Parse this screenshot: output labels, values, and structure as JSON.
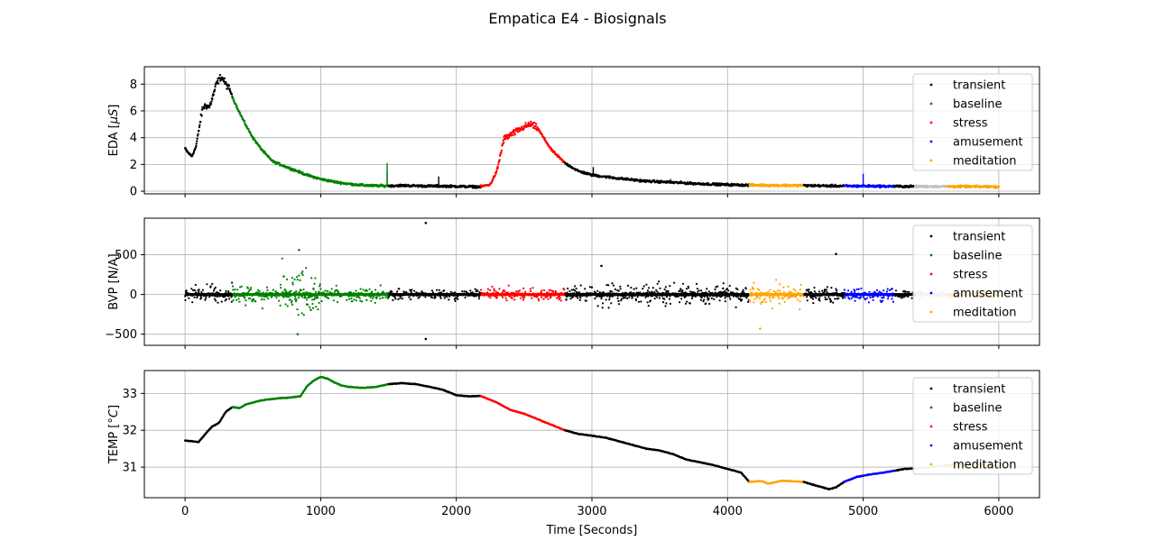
{
  "chart_data": {
    "type": "scatter",
    "title": "Empatica E4 - Biosignals",
    "xlabel": "Time [Seconds]",
    "xlim": [
      -300,
      6300
    ],
    "xticks": [
      0,
      1000,
      2000,
      3000,
      4000,
      5000,
      6000
    ],
    "grid": true,
    "legend_position": "upper right",
    "phase_colors": {
      "transient": "#000000",
      "baseline": "#008000",
      "stress": "#ff0000",
      "amusement": "#0000ff",
      "meditation": "#ffa500",
      "neutral": "#c0c0c0"
    },
    "legend": [
      "transient",
      "baseline",
      "stress",
      "amusement",
      "meditation"
    ],
    "phases": [
      {
        "label": "transient",
        "start": 0,
        "end": 350
      },
      {
        "label": "baseline",
        "start": 350,
        "end": 1500
      },
      {
        "label": "transient",
        "start": 1500,
        "end": 2180
      },
      {
        "label": "stress",
        "start": 2180,
        "end": 2800
      },
      {
        "label": "transient",
        "start": 2800,
        "end": 4160
      },
      {
        "label": "meditation",
        "start": 4160,
        "end": 4560
      },
      {
        "label": "transient",
        "start": 4560,
        "end": 4860
      },
      {
        "label": "amusement",
        "start": 4860,
        "end": 5230
      },
      {
        "label": "transient",
        "start": 5230,
        "end": 5380
      },
      {
        "label": "neutral",
        "start": 5380,
        "end": 5620
      },
      {
        "label": "meditation",
        "start": 5620,
        "end": 6000
      }
    ],
    "panels": [
      {
        "name": "EDA",
        "ylabel_main": "EDA [",
        "ylabel_unit": "μS",
        "ylabel_close": "]",
        "ylim": [
          -0.2,
          9.3
        ],
        "yticks": [
          0,
          2,
          4,
          6,
          8
        ],
        "ytick_labels": [
          "0",
          "2",
          "4",
          "6",
          "8"
        ],
        "x": [
          0,
          20,
          50,
          80,
          100,
          130,
          150,
          180,
          200,
          230,
          260,
          280,
          300,
          330,
          350,
          400,
          450,
          500,
          550,
          600,
          650,
          700,
          800,
          900,
          1000,
          1100,
          1200,
          1300,
          1400,
          1500,
          1600,
          1700,
          1800,
          1900,
          2000,
          2100,
          2180,
          2250,
          2300,
          2350,
          2400,
          2450,
          2500,
          2550,
          2600,
          2650,
          2700,
          2800,
          2900,
          3000,
          3200,
          3400,
          3600,
          3800,
          4000,
          4160,
          4300,
          4560,
          4700,
          4860,
          5000,
          5230,
          5400,
          5620,
          5800,
          6000
        ],
        "y": [
          3.2,
          2.9,
          2.6,
          3.3,
          4.5,
          6.2,
          6.4,
          6.3,
          6.9,
          8.0,
          8.5,
          8.4,
          8.0,
          7.6,
          7.0,
          5.9,
          4.9,
          4.0,
          3.3,
          2.7,
          2.2,
          2.0,
          1.6,
          1.2,
          0.9,
          0.7,
          0.55,
          0.45,
          0.4,
          0.4,
          0.42,
          0.4,
          0.38,
          0.38,
          0.36,
          0.34,
          0.33,
          0.5,
          1.5,
          3.9,
          4.2,
          4.5,
          4.8,
          5.0,
          4.7,
          3.9,
          3.1,
          2.1,
          1.5,
          1.2,
          0.95,
          0.75,
          0.65,
          0.55,
          0.48,
          0.45,
          0.44,
          0.42,
          0.4,
          0.38,
          0.38,
          0.36,
          0.35,
          0.35,
          0.34,
          0.33
        ]
      },
      {
        "name": "BVP",
        "ylabel_main": "BVP [N/A]",
        "ylabel_unit": "",
        "ylabel_close": "",
        "ylim": [
          -640,
          960
        ],
        "yticks": [
          -500,
          0,
          500
        ],
        "ytick_labels": [
          "−500",
          "0",
          "500"
        ],
        "x": [
          0,
          6000
        ],
        "y": [
          0,
          0
        ],
        "amplitude": [
          {
            "start": 0,
            "end": 350,
            "amp": 110
          },
          {
            "start": 350,
            "end": 700,
            "amp": 120
          },
          {
            "start": 700,
            "end": 1000,
            "amp": 300
          },
          {
            "start": 1000,
            "end": 1500,
            "amp": 90
          },
          {
            "start": 1500,
            "end": 2180,
            "amp": 70
          },
          {
            "start": 2180,
            "end": 2800,
            "amp": 80
          },
          {
            "start": 2800,
            "end": 4160,
            "amp": 120
          },
          {
            "start": 4160,
            "end": 4560,
            "amp": 130
          },
          {
            "start": 4560,
            "end": 4860,
            "amp": 90
          },
          {
            "start": 4860,
            "end": 5230,
            "amp": 80
          },
          {
            "start": 5230,
            "end": 5380,
            "amp": 40
          },
          {
            "start": 5380,
            "end": 5620,
            "amp": 50
          },
          {
            "start": 5620,
            "end": 6000,
            "amp": 40
          }
        ],
        "outliers": [
          {
            "x": 1775,
            "y": 900
          },
          {
            "x": 1775,
            "y": -560
          },
          {
            "x": 840,
            "y": 560
          },
          {
            "x": 830,
            "y": -500
          },
          {
            "x": 4800,
            "y": 510
          },
          {
            "x": 4240,
            "y": -430
          },
          {
            "x": 3070,
            "y": 360
          }
        ]
      },
      {
        "name": "TEMP",
        "ylabel_main": "TEMP [",
        "ylabel_unit": "°C",
        "ylabel_close": "]",
        "ylim": [
          30.17,
          33.62
        ],
        "yticks": [
          31,
          32,
          33
        ],
        "ytick_labels": [
          "31",
          "32",
          "33"
        ],
        "x": [
          0,
          50,
          100,
          150,
          200,
          250,
          300,
          350,
          400,
          450,
          500,
          550,
          600,
          650,
          700,
          750,
          800,
          850,
          900,
          950,
          1000,
          1050,
          1100,
          1150,
          1200,
          1300,
          1400,
          1500,
          1600,
          1700,
          1800,
          1900,
          2000,
          2100,
          2180,
          2300,
          2400,
          2500,
          2600,
          2700,
          2800,
          2900,
          3000,
          3100,
          3200,
          3300,
          3400,
          3500,
          3600,
          3700,
          3800,
          3900,
          4000,
          4100,
          4160,
          4250,
          4300,
          4400,
          4560,
          4650,
          4750,
          4800,
          4860,
          4950,
          5050,
          5150,
          5230,
          5300,
          5380,
          5500,
          5620,
          5800,
          6000
        ],
        "y": [
          31.72,
          31.7,
          31.68,
          31.9,
          32.1,
          32.2,
          32.5,
          32.63,
          32.6,
          32.7,
          32.75,
          32.8,
          32.83,
          32.85,
          32.87,
          32.88,
          32.9,
          32.92,
          33.2,
          33.35,
          33.45,
          33.4,
          33.3,
          33.22,
          33.18,
          33.15,
          33.17,
          33.25,
          33.28,
          33.25,
          33.18,
          33.1,
          32.95,
          32.92,
          32.93,
          32.75,
          32.55,
          32.45,
          32.3,
          32.15,
          32.0,
          31.9,
          31.85,
          31.8,
          31.7,
          31.6,
          31.5,
          31.45,
          31.35,
          31.2,
          31.13,
          31.05,
          30.95,
          30.85,
          30.6,
          30.62,
          30.55,
          30.63,
          30.6,
          30.5,
          30.4,
          30.45,
          30.6,
          30.73,
          30.8,
          30.85,
          30.9,
          30.95,
          30.96,
          31.0,
          31.05,
          31.08,
          31.02
        ]
      }
    ]
  }
}
